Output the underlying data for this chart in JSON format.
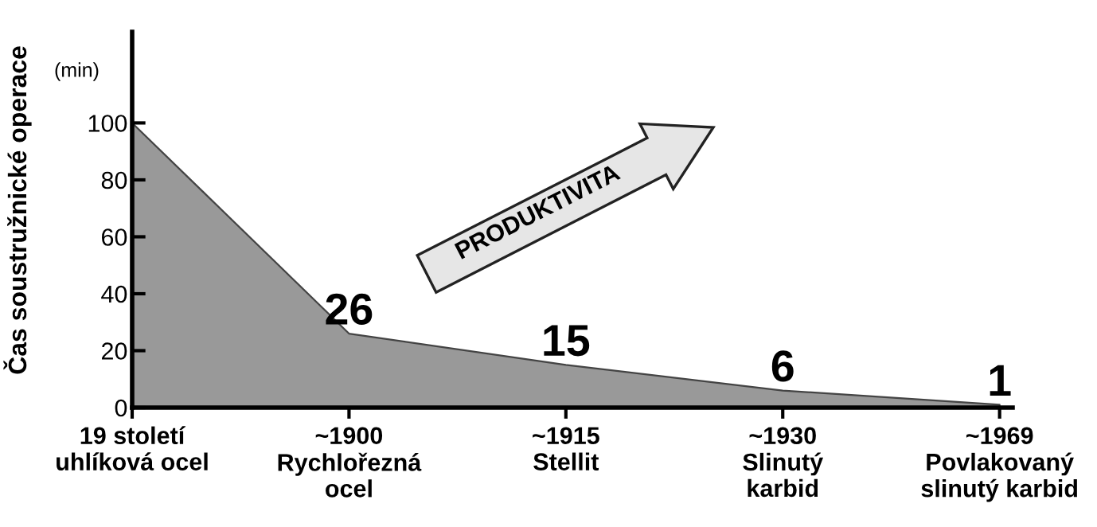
{
  "chart_data": {
    "type": "area",
    "ylabel": "Čas soustružnické operace",
    "categories": [
      "19 století\nuhlíková ocel",
      "~1900\nRychlořezná\nocel",
      "~1915\nStellit",
      "~1930\nSlinutý\nkarbid",
      "~1969\nPovlakovaný\nslinutý karbid"
    ],
    "series": [
      {
        "color": "#999999",
        "values": [
          100,
          26,
          15,
          6,
          1
        ]
      }
    ],
    "value_labels": [
      null,
      "26",
      "15",
      "6",
      "1"
    ],
    "ylim": [
      0,
      132
    ],
    "yticks": [
      0,
      20,
      40,
      60,
      80,
      100
    ],
    "grid": false,
    "annotations": [
      "(min)",
      "PRODUKTIVITA"
    ]
  }
}
